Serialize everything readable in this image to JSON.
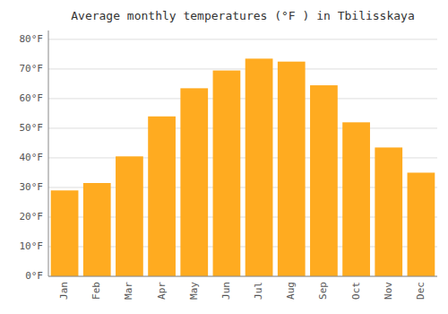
{
  "chart_data": {
    "type": "bar",
    "title": "Average monthly temperatures (°F ) in Tbilisskaya",
    "categories": [
      "Jan",
      "Feb",
      "Mar",
      "Apr",
      "May",
      "Jun",
      "Jul",
      "Aug",
      "Sep",
      "Oct",
      "Nov",
      "Dec"
    ],
    "values": [
      29,
      31.5,
      40.5,
      54,
      63.5,
      69.5,
      73.5,
      72.5,
      64.5,
      52,
      43.5,
      35
    ],
    "color": "#FFAB20",
    "ylim": [
      0,
      83
    ],
    "yticks": [
      {
        "value": 0,
        "label": "0°F"
      },
      {
        "value": 10,
        "label": "10°F"
      },
      {
        "value": 20,
        "label": "20°F"
      },
      {
        "value": 30,
        "label": "30°F"
      },
      {
        "value": 40,
        "label": "40°F"
      },
      {
        "value": 50,
        "label": "50°F"
      },
      {
        "value": 60,
        "label": "60°F"
      },
      {
        "value": 70,
        "label": "70°F"
      },
      {
        "value": 80,
        "label": "80°F"
      }
    ],
    "grid": true
  }
}
